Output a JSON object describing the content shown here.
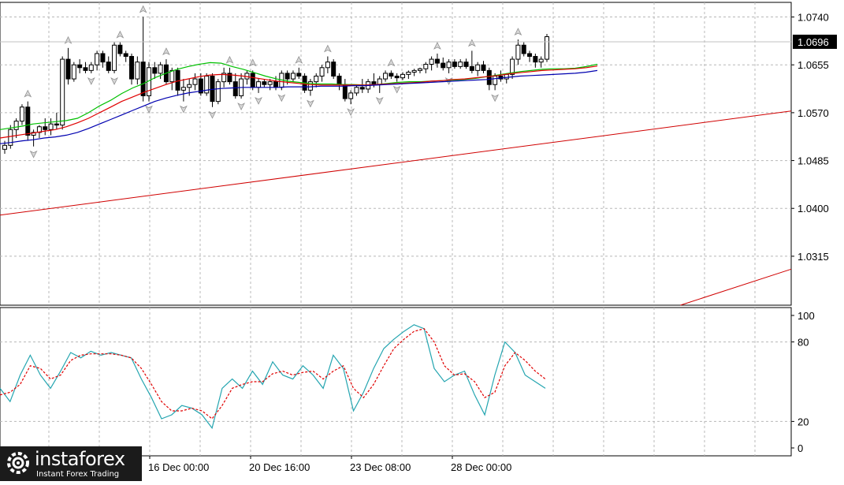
{
  "chart_data": {
    "type": "candlestick",
    "instrument_panel": {
      "price_ticks": [
        1.074,
        1.0655,
        1.057,
        1.0485,
        1.04,
        1.0315
      ],
      "price_tick_labels": [
        "1.0740",
        "1.0655",
        "1.0570",
        "1.0485",
        "1.0400",
        "1.0315"
      ],
      "ylim": [
        1.0228,
        1.0766
      ],
      "current_price_label": "1.0696",
      "current_price": 1.0696,
      "time_labels": [
        "16 Dec 00:00",
        "20 Dec 16:00",
        "23 Dec 08:00",
        "28 Dec 00:00"
      ],
      "candles": [
        [
          1.0505,
          1.052,
          1.0497,
          1.0512
        ],
        [
          1.0512,
          1.0548,
          1.0506,
          1.054
        ],
        [
          1.054,
          1.056,
          1.0525,
          1.0555
        ],
        [
          1.0555,
          1.0585,
          1.0548,
          1.058
        ],
        [
          1.058,
          1.059,
          1.052,
          1.053
        ],
        [
          1.053,
          1.054,
          1.051,
          1.0535
        ],
        [
          1.0535,
          1.0548,
          1.0525,
          1.0545
        ],
        [
          1.0545,
          1.056,
          1.053,
          1.054
        ],
        [
          1.054,
          1.056,
          1.053,
          1.055
        ],
        [
          1.055,
          1.057,
          1.054,
          1.0548
        ],
        [
          1.0548,
          1.067,
          1.054,
          1.0665
        ],
        [
          1.0665,
          1.0685,
          1.062,
          1.063
        ],
        [
          1.063,
          1.066,
          1.0625,
          1.0655
        ],
        [
          1.0655,
          1.0665,
          1.064,
          1.065
        ],
        [
          1.065,
          1.066,
          1.064,
          1.0645
        ],
        [
          1.0645,
          1.066,
          1.064,
          1.0655
        ],
        [
          1.0655,
          1.068,
          1.0645,
          1.0675
        ],
        [
          1.0675,
          1.068,
          1.065,
          1.066
        ],
        [
          1.066,
          1.067,
          1.064,
          1.0645
        ],
        [
          1.0645,
          1.0695,
          1.064,
          1.069
        ],
        [
          1.069,
          1.0695,
          1.067,
          1.0675
        ],
        [
          1.0675,
          1.068,
          1.066,
          1.067
        ],
        [
          1.067,
          1.0675,
          1.062,
          1.063
        ],
        [
          1.063,
          1.067,
          1.062,
          1.066
        ],
        [
          1.066,
          1.074,
          1.059,
          1.06
        ],
        [
          1.06,
          1.066,
          1.059,
          1.065
        ],
        [
          1.065,
          1.066,
          1.063,
          1.064
        ],
        [
          1.064,
          1.066,
          1.063,
          1.0655
        ],
        [
          1.0655,
          1.0665,
          1.062,
          1.0625
        ],
        [
          1.0625,
          1.065,
          1.061,
          1.0645
        ],
        [
          1.0645,
          1.065,
          1.06,
          1.061
        ],
        [
          1.061,
          1.063,
          1.059,
          1.0615
        ],
        [
          1.0615,
          1.063,
          1.06,
          1.062
        ],
        [
          1.062,
          1.064,
          1.061,
          1.063
        ],
        [
          1.063,
          1.064,
          1.06,
          1.0605
        ],
        [
          1.0605,
          1.064,
          1.06,
          1.0635
        ],
        [
          1.0635,
          1.064,
          1.058,
          1.059
        ],
        [
          1.059,
          1.063,
          1.0585,
          1.0625
        ],
        [
          1.0625,
          1.065,
          1.0615,
          1.064
        ],
        [
          1.064,
          1.065,
          1.062,
          1.0625
        ],
        [
          1.0625,
          1.064,
          1.0595,
          1.06
        ],
        [
          1.06,
          1.064,
          1.0595,
          1.063
        ],
        [
          1.063,
          1.0645,
          1.062,
          1.064
        ],
        [
          1.064,
          1.0645,
          1.061,
          1.0615
        ],
        [
          1.0615,
          1.063,
          1.0605,
          1.0625
        ],
        [
          1.0625,
          1.063,
          1.0615,
          1.062
        ],
        [
          1.062,
          1.063,
          1.061,
          1.0625
        ],
        [
          1.0625,
          1.0635,
          1.061,
          1.0615
        ],
        [
          1.0615,
          1.0645,
          1.061,
          1.064
        ],
        [
          1.064,
          1.0645,
          1.062,
          1.063
        ],
        [
          1.063,
          1.0645,
          1.0625,
          1.064
        ],
        [
          1.064,
          1.065,
          1.063,
          1.0635
        ],
        [
          1.0635,
          1.064,
          1.0605,
          1.061
        ],
        [
          1.061,
          1.063,
          1.06,
          1.0625
        ],
        [
          1.0625,
          1.064,
          1.0615,
          1.0635
        ],
        [
          1.0635,
          1.0655,
          1.0625,
          1.065
        ],
        [
          1.065,
          1.067,
          1.064,
          1.066
        ],
        [
          1.066,
          1.0665,
          1.063,
          1.0635
        ],
        [
          1.0635,
          1.064,
          1.061,
          1.062
        ],
        [
          1.062,
          1.063,
          1.059,
          1.0595
        ],
        [
          1.0595,
          1.061,
          1.0585,
          1.0605
        ],
        [
          1.0605,
          1.062,
          1.06,
          1.0615
        ],
        [
          1.0615,
          1.063,
          1.0605,
          1.0612
        ],
        [
          1.0612,
          1.063,
          1.0605,
          1.0625
        ],
        [
          1.0625,
          1.064,
          1.0615,
          1.062
        ],
        [
          1.062,
          1.0635,
          1.0605,
          1.063
        ],
        [
          1.063,
          1.0645,
          1.0625,
          1.064
        ],
        [
          1.064,
          1.0645,
          1.063,
          1.0635
        ],
        [
          1.0635,
          1.064,
          1.0625,
          1.0632
        ],
        [
          1.0632,
          1.0642,
          1.0628,
          1.0638
        ],
        [
          1.0638,
          1.0645,
          1.063,
          1.0642
        ],
        [
          1.0642,
          1.0648,
          1.0635,
          1.0645
        ],
        [
          1.0645,
          1.065,
          1.064,
          1.0648
        ],
        [
          1.0648,
          1.066,
          1.064,
          1.0656
        ],
        [
          1.0656,
          1.067,
          1.0645,
          1.0665
        ],
        [
          1.0665,
          1.0675,
          1.065,
          1.0658
        ],
        [
          1.0658,
          1.0668,
          1.0645,
          1.065
        ],
        [
          1.065,
          1.0665,
          1.064,
          1.066
        ],
        [
          1.066,
          1.0665,
          1.0648,
          1.0652
        ],
        [
          1.0652,
          1.0665,
          1.0648,
          1.066
        ],
        [
          1.066,
          1.0666,
          1.0648,
          1.0652
        ],
        [
          1.0652,
          1.068,
          1.064,
          1.0645
        ],
        [
          1.0645,
          1.066,
          1.0635,
          1.0655
        ],
        [
          1.0655,
          1.0662,
          1.064,
          1.0645
        ],
        [
          1.0645,
          1.065,
          1.061,
          1.062
        ],
        [
          1.062,
          1.064,
          1.061,
          1.0635
        ],
        [
          1.0635,
          1.0645,
          1.0625,
          1.063
        ],
        [
          1.063,
          1.064,
          1.0622,
          1.0638
        ],
        [
          1.0638,
          1.067,
          1.063,
          1.0665
        ],
        [
          1.0665,
          1.07,
          1.0655,
          1.069
        ],
        [
          1.069,
          1.0695,
          1.067,
          1.0675
        ],
        [
          1.0675,
          1.068,
          1.066,
          1.067
        ],
        [
          1.067,
          1.0675,
          1.065,
          1.066
        ],
        [
          1.066,
          1.067,
          1.065,
          1.0665
        ],
        [
          1.0665,
          1.071,
          1.066,
          1.0705
        ]
      ],
      "moving_averages": [
        {
          "color": "#00c000",
          "values": [
            1.054,
            1.0543,
            1.0546,
            1.055,
            1.0552,
            1.0554,
            1.0556,
            1.056,
            1.057,
            1.0582,
            1.0592,
            1.0604,
            1.0614,
            1.0622,
            1.0632,
            1.064,
            1.0647,
            1.0652,
            1.0656,
            1.0659,
            1.0658,
            1.0652,
            1.0647,
            1.0641,
            1.0635,
            1.063,
            1.0626,
            1.0624,
            1.0622,
            1.0621,
            1.0621,
            1.062,
            1.062,
            1.0619,
            1.062,
            1.0622,
            1.0624,
            1.0625,
            1.0625,
            1.0626,
            1.0627,
            1.0628,
            1.0629,
            1.0631,
            1.0634,
            1.0637,
            1.064,
            1.0643,
            1.0645,
            1.0647,
            1.0648,
            1.0648,
            1.0649,
            1.0652,
            1.0656
          ]
        },
        {
          "color": "#e00000",
          "values": [
            1.0525,
            1.0528,
            1.0531,
            1.0534,
            1.0537,
            1.054,
            1.0545,
            1.0552,
            1.056,
            1.057,
            1.058,
            1.059,
            1.0598,
            1.0606,
            1.0613,
            1.062,
            1.0626,
            1.063,
            1.0634,
            1.0637,
            1.0638,
            1.0637,
            1.0635,
            1.0632,
            1.0629,
            1.0626,
            1.0624,
            1.0622,
            1.062,
            1.0619,
            1.0619,
            1.0619,
            1.0619,
            1.0619,
            1.062,
            1.0621,
            1.0622,
            1.0623,
            1.0624,
            1.0626,
            1.0627,
            1.0629,
            1.063,
            1.0632,
            1.0634,
            1.0636,
            1.0639,
            1.0641,
            1.0643,
            1.0645,
            1.0646,
            1.0647,
            1.0648,
            1.065,
            1.0653
          ]
        },
        {
          "color": "#0000b0",
          "values": [
            1.0515,
            1.0517,
            1.052,
            1.0522,
            1.0525,
            1.0527,
            1.053,
            1.0535,
            1.0542,
            1.055,
            1.0558,
            1.0566,
            1.0574,
            1.0582,
            1.059,
            1.0596,
            1.0601,
            1.0605,
            1.0608,
            1.0611,
            1.0613,
            1.0614,
            1.0615,
            1.0615,
            1.0615,
            1.0615,
            1.0616,
            1.0616,
            1.0616,
            1.0617,
            1.0617,
            1.0617,
            1.0618,
            1.0618,
            1.0619,
            1.062,
            1.0621,
            1.0622,
            1.0623,
            1.0624,
            1.0625,
            1.0626,
            1.0627,
            1.0628,
            1.0629,
            1.0631,
            1.0633,
            1.0635,
            1.0636,
            1.0637,
            1.0638,
            1.0639,
            1.064,
            1.0642,
            1.0645
          ]
        }
      ],
      "trend_lines": [
        {
          "color": "#d00000",
          "p1": [
            0,
            1.0388
          ],
          "p2": [
            1,
            1.0573
          ]
        },
        {
          "color": "#d00000",
          "p1": [
            0.86,
            1.0228
          ],
          "p2": [
            1,
            1.0292
          ]
        }
      ]
    },
    "oscillator_panel": {
      "ylim": [
        0,
        100
      ],
      "level_labels": [
        "100",
        "80",
        "20",
        "0"
      ],
      "levels": [
        100,
        80,
        20,
        0
      ],
      "main": {
        "color": "#24a5b0",
        "values": [
          45,
          35,
          55,
          70,
          55,
          45,
          58,
          72,
          68,
          73,
          70,
          72,
          70,
          68,
          52,
          38,
          22,
          25,
          32,
          30,
          25,
          15,
          45,
          52,
          45,
          58,
          48,
          65,
          55,
          52,
          62,
          55,
          45,
          70,
          60,
          28,
          42,
          60,
          75,
          82,
          88,
          93,
          90,
          60,
          50,
          55,
          58,
          40,
          25,
          55,
          80,
          72,
          55,
          50,
          45
        ]
      },
      "signal": {
        "color": "#e00000",
        "values": [
          40,
          42,
          48,
          62,
          60,
          52,
          55,
          66,
          70,
          71,
          71,
          71,
          70,
          68,
          60,
          48,
          35,
          28,
          28,
          30,
          28,
          22,
          32,
          45,
          48,
          50,
          50,
          56,
          58,
          55,
          57,
          58,
          52,
          58,
          62,
          45,
          38,
          48,
          62,
          75,
          82,
          88,
          90,
          80,
          62,
          55,
          56,
          50,
          38,
          42,
          62,
          72,
          66,
          58,
          52
        ]
      }
    }
  },
  "brand": {
    "name": "instaforex",
    "tagline": "Instant Forex Trading",
    "background": "#1b1b1b"
  }
}
